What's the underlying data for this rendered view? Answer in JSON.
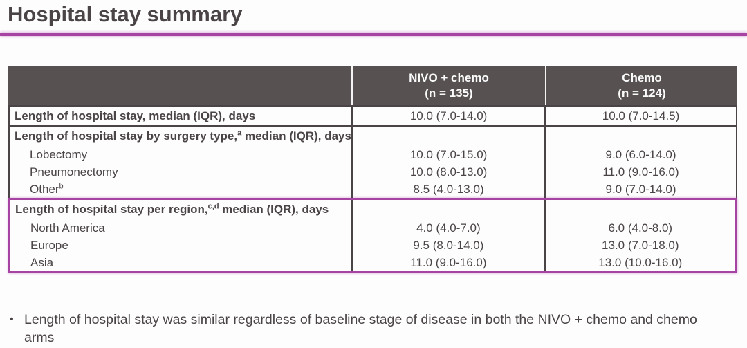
{
  "slide": {
    "title": "Hospital stay summary",
    "accent_color": "#a743a2",
    "header_bg_color": "#585152",
    "text_color": "#4a4446"
  },
  "table": {
    "columns": [
      {
        "title": "NIVO + chemo",
        "subtitle": "(n = 135)"
      },
      {
        "title": "Chemo",
        "subtitle": "(n = 124)"
      }
    ],
    "row1": {
      "label": "Length of hospital stay, median (IQR), days",
      "nivo": "10.0 (7.0-14.0)",
      "chemo": "10.0 (7.0-14.5)"
    },
    "surgery": {
      "header_pre": "Length of hospital stay by surgery type,",
      "header_sup": "a",
      "header_post": " median (IQR), days",
      "rows": [
        {
          "label": "Lobectomy",
          "sup": "",
          "nivo": "10.0 (7.0-15.0)",
          "chemo": "9.0 (6.0-14.0)"
        },
        {
          "label": "Pneumonectomy",
          "sup": "",
          "nivo": "10.0 (8.0-13.0)",
          "chemo": "11.0 (9.0-16.0)"
        },
        {
          "label": "Other",
          "sup": "b",
          "nivo": "8.5 (4.0-13.0)",
          "chemo": "9.0 (7.0-14.0)"
        }
      ]
    },
    "region": {
      "header_pre": "Length of hospital stay per region,",
      "header_sup": "c,d",
      "header_post": " median (IQR), days",
      "rows": [
        {
          "label": "North America",
          "sup": "",
          "nivo": "4.0 (4.0-7.0)",
          "chemo": "6.0 (4.0-8.0)"
        },
        {
          "label": "Europe",
          "sup": "",
          "nivo": "9.5 (8.0-14.0)",
          "chemo": "13.0 (7.0-18.0)"
        },
        {
          "label": "Asia",
          "sup": "",
          "nivo": "11.0 (9.0-16.0)",
          "chemo": "13.0 (10.0-16.0)"
        }
      ]
    }
  },
  "bullet": {
    "marker": "•",
    "text": "Length of hospital stay was similar regardless of baseline stage of disease in both the NIVO + chemo and chemo arms"
  }
}
